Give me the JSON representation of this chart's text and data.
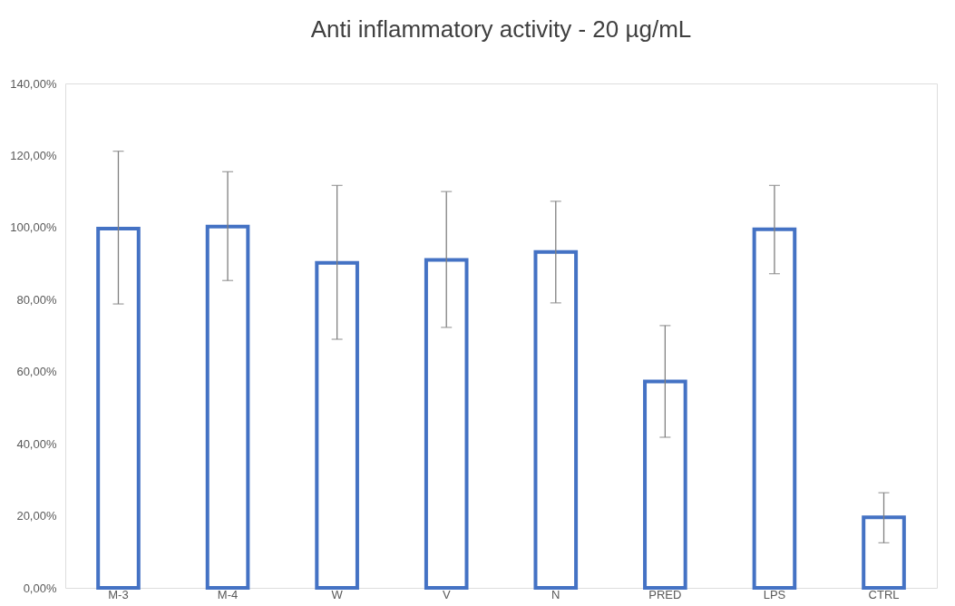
{
  "chart_data": {
    "type": "bar",
    "title": "Anti inflammatory activity - 20 µg/mL",
    "categories": [
      "M-3",
      "M-4",
      "W",
      "V",
      "N",
      "PRED",
      "LPS",
      "CTRL"
    ],
    "values": [
      99.7,
      100.3,
      90.2,
      91.0,
      93.2,
      57.3,
      99.5,
      19.6
    ],
    "errors": [
      [
        78.8,
        121.2
      ],
      [
        85.3,
        115.5
      ],
      [
        69.0,
        111.7
      ],
      [
        72.3,
        110.0
      ],
      [
        79.1,
        107.3
      ],
      [
        41.8,
        72.8
      ],
      [
        87.2,
        111.7
      ],
      [
        12.5,
        26.4
      ]
    ],
    "color": "#4472c4",
    "ylim": [
      0,
      140
    ],
    "yticks": [
      {
        "value": 0,
        "label": "0,00%"
      },
      {
        "value": 20,
        "label": "20,00%"
      },
      {
        "value": 40,
        "label": "40,00%"
      },
      {
        "value": 60,
        "label": "60,00%"
      },
      {
        "value": 80,
        "label": "80,00%"
      },
      {
        "value": 100,
        "label": "100,00%"
      },
      {
        "value": 120,
        "label": "120,00%"
      },
      {
        "value": 140,
        "label": "140,00%"
      }
    ],
    "grid": false
  }
}
